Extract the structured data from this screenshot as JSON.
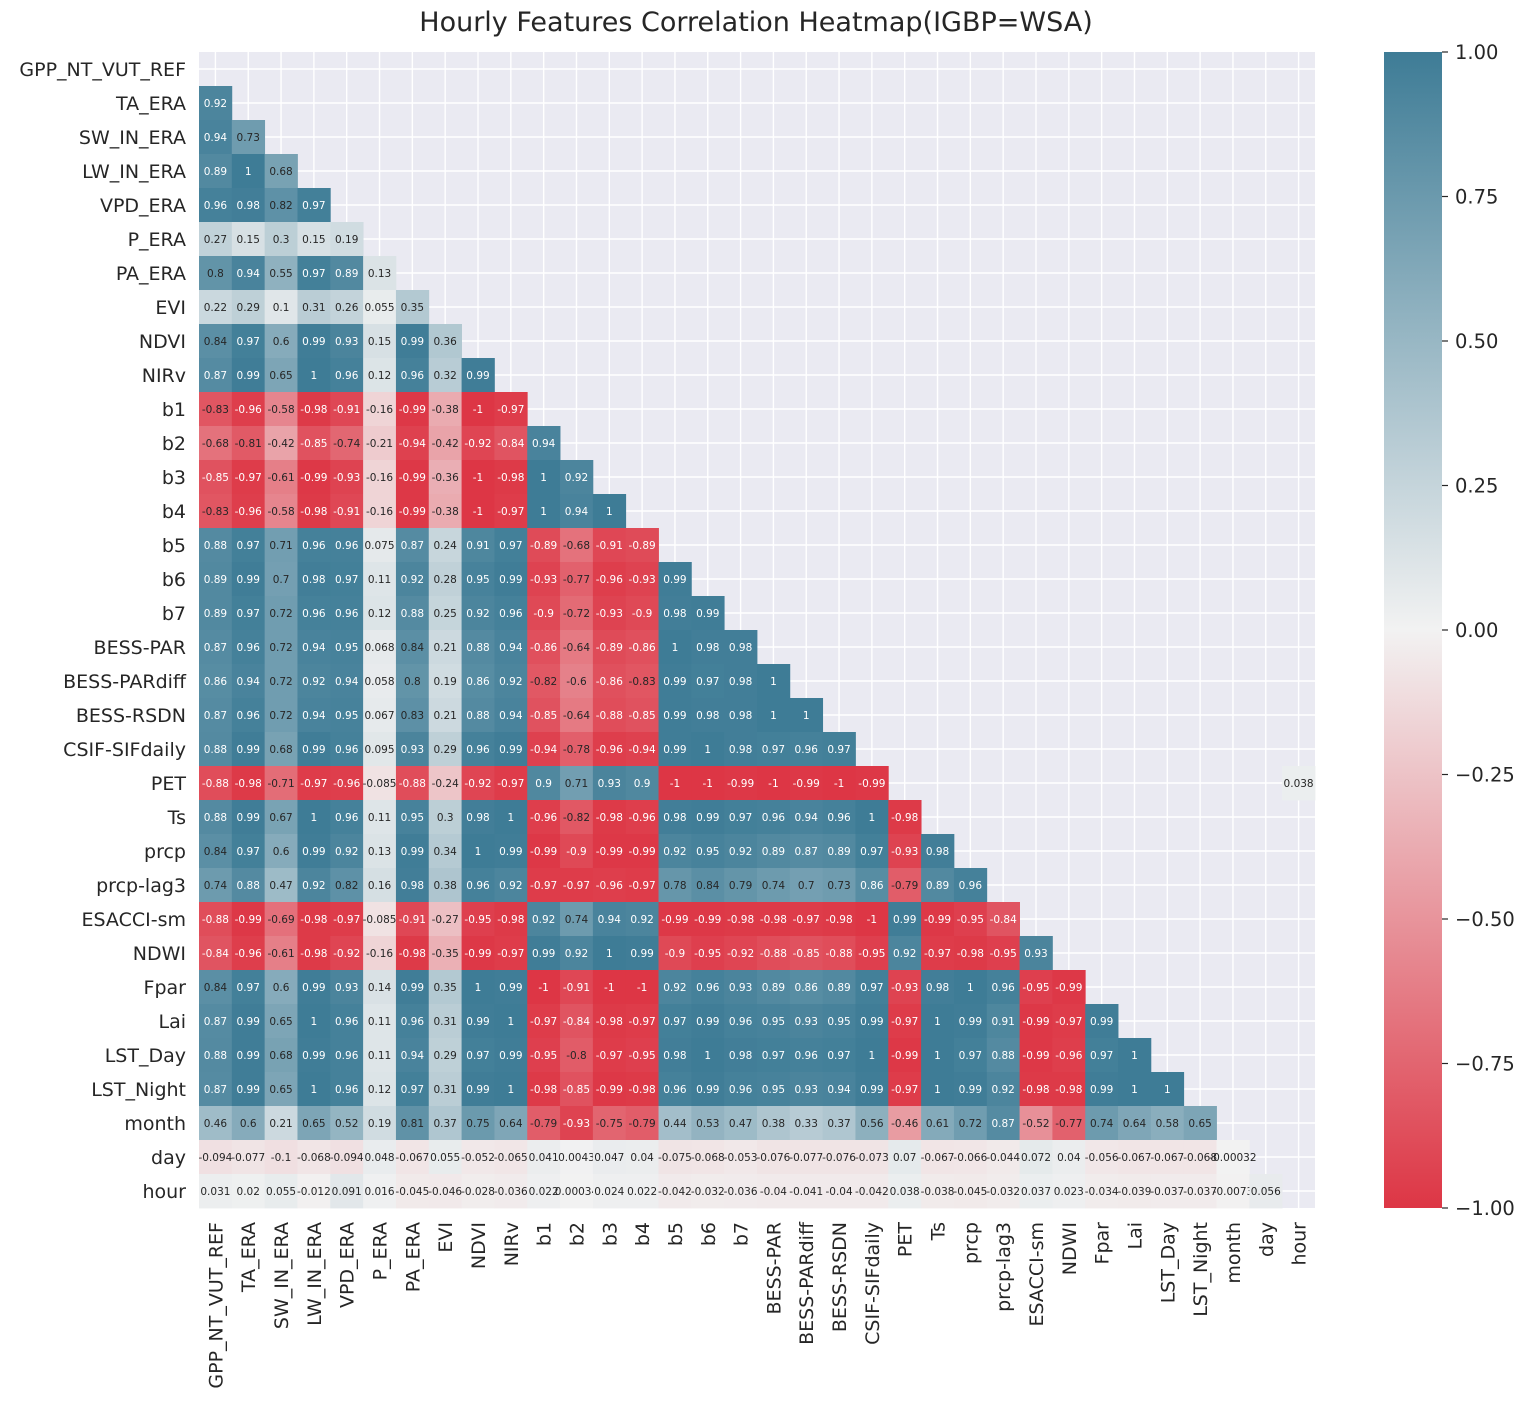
{
  "chart_data": {
    "type": "heatmap",
    "title": "Hourly Features Correlation Heatmap(IGBP=WSA)",
    "labels": [
      "GPP_NT_VUT_REF",
      "TA_ERA",
      "SW_IN_ERA",
      "LW_IN_ERA",
      "VPD_ERA",
      "P_ERA",
      "PA_ERA",
      "EVI",
      "NDVI",
      "NIRv",
      "b1",
      "b2",
      "b3",
      "b4",
      "b5",
      "b6",
      "b7",
      "BESS-PAR",
      "BESS-PARdiff",
      "BESS-RSDN",
      "CSIF-SIFdaily",
      "PET",
      "Ts",
      "prcp",
      "prcp-lag3",
      "ESACCI-sm",
      "NDWI",
      "Fpar",
      "Lai",
      "LST_Day",
      "LST_Night",
      "month",
      "day",
      "hour"
    ],
    "mask": "upper-triangle",
    "value_range": [
      -1,
      1
    ],
    "colormap": {
      "low": "#dd3645",
      "mid": "#f2f2f2",
      "high": "#3e7c96"
    },
    "colorbar_ticks": [
      "1.00",
      "0.75",
      "0.50",
      "0.25",
      "0.00",
      "−0.25",
      "−0.50",
      "−0.75",
      "−1.00"
    ],
    "lower_triangle_values": [
      [],
      [
        0.92
      ],
      [
        0.94,
        0.73
      ],
      [
        0.89,
        1,
        0.68
      ],
      [
        0.96,
        0.98,
        0.82,
        0.97
      ],
      [
        0.27,
        0.15,
        0.3,
        0.15,
        0.19
      ],
      [
        0.8,
        0.94,
        0.55,
        0.97,
        0.89,
        0.13
      ],
      [
        0.22,
        0.29,
        0.1,
        0.31,
        0.26,
        0.055,
        0.35
      ],
      [
        0.84,
        0.97,
        0.6,
        0.99,
        0.93,
        0.15,
        0.99,
        0.36
      ],
      [
        0.87,
        0.99,
        0.65,
        1,
        0.96,
        0.12,
        0.96,
        0.32,
        0.99
      ],
      [
        -0.83,
        -0.96,
        -0.58,
        -0.98,
        -0.91,
        -0.16,
        -0.99,
        -0.38,
        -1,
        -0.97
      ],
      [
        -0.68,
        -0.81,
        -0.42,
        -0.85,
        -0.74,
        -0.21,
        -0.94,
        -0.42,
        -0.92,
        -0.84,
        0.94
      ],
      [
        -0.85,
        -0.97,
        -0.61,
        -0.99,
        -0.93,
        -0.16,
        -0.99,
        -0.36,
        -1,
        -0.98,
        1,
        0.92
      ],
      [
        -0.83,
        -0.96,
        -0.58,
        -0.98,
        -0.91,
        -0.16,
        -0.99,
        -0.38,
        -1,
        -0.97,
        1,
        0.94,
        1
      ],
      [
        0.88,
        0.97,
        0.71,
        0.96,
        0.96,
        0.075,
        0.87,
        0.24,
        0.91,
        0.97,
        -0.89,
        -0.68,
        -0.91,
        -0.89
      ],
      [
        0.89,
        0.99,
        0.7,
        0.98,
        0.97,
        0.11,
        0.92,
        0.28,
        0.95,
        0.99,
        -0.93,
        -0.77,
        -0.96,
        -0.93,
        0.99
      ],
      [
        0.89,
        0.97,
        0.72,
        0.96,
        0.96,
        0.12,
        0.88,
        0.25,
        0.92,
        0.96,
        -0.9,
        -0.72,
        -0.93,
        -0.9,
        0.98,
        0.99
      ],
      [
        0.87,
        0.96,
        0.72,
        0.94,
        0.95,
        0.068,
        0.84,
        0.21,
        0.88,
        0.94,
        -0.86,
        -0.64,
        -0.89,
        -0.86,
        1,
        0.98,
        0.98
      ],
      [
        0.86,
        0.94,
        0.72,
        0.92,
        0.94,
        0.058,
        0.8,
        0.19,
        0.86,
        0.92,
        -0.82,
        -0.6,
        -0.86,
        -0.83,
        0.99,
        0.97,
        0.98,
        1
      ],
      [
        0.87,
        0.96,
        0.72,
        0.94,
        0.95,
        0.067,
        0.83,
        0.21,
        0.88,
        0.94,
        -0.85,
        -0.64,
        -0.88,
        -0.85,
        0.99,
        0.98,
        0.98,
        1,
        1
      ],
      [
        0.88,
        0.99,
        0.68,
        0.99,
        0.96,
        0.095,
        0.93,
        0.29,
        0.96,
        0.99,
        -0.94,
        -0.78,
        -0.96,
        -0.94,
        0.99,
        1,
        0.98,
        0.97,
        0.96,
        0.97
      ],
      [
        -0.88,
        -0.98,
        -0.71,
        -0.97,
        -0.96,
        -0.085,
        -0.88,
        -0.24,
        -0.92,
        -0.97,
        0.9,
        0.71,
        0.93,
        0.9,
        -1,
        -1,
        -0.99,
        -1,
        -0.99,
        -1,
        -0.99
      ],
      [
        0.88,
        0.99,
        0.67,
        1,
        0.96,
        0.11,
        0.95,
        0.3,
        0.98,
        1,
        -0.96,
        -0.82,
        -0.98,
        -0.96,
        0.98,
        0.99,
        0.97,
        0.96,
        0.94,
        0.96,
        1,
        -0.98
      ],
      [
        0.84,
        0.97,
        0.6,
        0.99,
        0.92,
        0.13,
        0.99,
        0.34,
        1,
        0.99,
        -0.99,
        -0.9,
        -0.99,
        -0.99,
        0.92,
        0.95,
        0.92,
        0.89,
        0.87,
        0.89,
        0.97,
        -0.93,
        0.98
      ],
      [
        0.74,
        0.88,
        0.47,
        0.92,
        0.82,
        0.16,
        0.98,
        0.38,
        0.96,
        0.92,
        -0.97,
        -0.97,
        -0.96,
        -0.97,
        0.78,
        0.84,
        0.79,
        0.74,
        0.7,
        0.73,
        0.86,
        -0.79,
        0.89,
        0.96
      ],
      [
        -0.88,
        -0.99,
        -0.69,
        -0.98,
        -0.97,
        -0.085,
        -0.91,
        -0.27,
        -0.95,
        -0.98,
        0.92,
        0.74,
        0.94,
        0.92,
        -0.99,
        -0.99,
        -0.98,
        -0.98,
        -0.97,
        -0.98,
        -1,
        0.99,
        -0.99,
        -0.95,
        -0.84
      ],
      [
        -0.84,
        -0.96,
        -0.61,
        -0.98,
        -0.92,
        -0.16,
        -0.98,
        -0.35,
        -0.99,
        -0.97,
        0.99,
        0.92,
        1,
        0.99,
        -0.9,
        -0.95,
        -0.92,
        -0.88,
        -0.85,
        -0.88,
        -0.95,
        0.92,
        -0.97,
        -0.98,
        -0.95,
        0.93
      ],
      [
        0.84,
        0.97,
        0.6,
        0.99,
        0.93,
        0.14,
        0.99,
        0.35,
        1,
        0.99,
        -1,
        -0.91,
        -1,
        -1,
        0.92,
        0.96,
        0.93,
        0.89,
        0.86,
        0.89,
        0.97,
        -0.93,
        0.98,
        1,
        0.96,
        -0.95,
        -0.99
      ],
      [
        0.87,
        0.99,
        0.65,
        1,
        0.96,
        0.11,
        0.96,
        0.31,
        0.99,
        1,
        -0.97,
        -0.84,
        -0.98,
        -0.97,
        0.97,
        0.99,
        0.96,
        0.95,
        0.93,
        0.95,
        0.99,
        -0.97,
        1,
        0.99,
        0.91,
        -0.99,
        -0.97,
        0.99
      ],
      [
        0.88,
        0.99,
        0.68,
        0.99,
        0.96,
        0.11,
        0.94,
        0.29,
        0.97,
        0.99,
        -0.95,
        -0.8,
        -0.97,
        -0.95,
        0.98,
        1,
        0.98,
        0.97,
        0.96,
        0.97,
        1,
        -0.99,
        1,
        0.97,
        0.88,
        -0.99,
        -0.96,
        0.97,
        1
      ],
      [
        0.87,
        0.99,
        0.65,
        1,
        0.96,
        0.12,
        0.97,
        0.31,
        0.99,
        1,
        -0.98,
        -0.85,
        -0.99,
        -0.98,
        0.96,
        0.99,
        0.96,
        0.95,
        0.93,
        0.94,
        0.99,
        -0.97,
        1,
        0.99,
        0.92,
        -0.98,
        -0.98,
        0.99,
        1,
        1
      ],
      [
        0.46,
        0.6,
        0.21,
        0.65,
        0.52,
        0.19,
        0.81,
        0.37,
        0.75,
        0.64,
        -0.79,
        -0.93,
        -0.75,
        -0.79,
        0.44,
        0.53,
        0.47,
        0.38,
        0.33,
        0.37,
        0.56,
        -0.46,
        0.61,
        0.72,
        0.87,
        -0.52,
        -0.77,
        0.74,
        0.64,
        0.58,
        0.65
      ],
      [
        -0.094,
        -0.077,
        -0.1,
        -0.068,
        -0.094,
        0.048,
        -0.067,
        0.055,
        -0.052,
        -0.065,
        0.041,
        0.0043,
        0.047,
        0.04,
        -0.075,
        -0.068,
        -0.053,
        -0.076,
        -0.077,
        -0.076,
        -0.073,
        0.07,
        -0.067,
        -0.066,
        -0.044,
        0.072,
        0.04,
        -0.056,
        -0.067,
        -0.067,
        -0.068,
        -0.00032
      ],
      [
        0.031,
        0.02,
        0.055,
        -0.012,
        0.091,
        0.016,
        -0.045,
        -0.046,
        -0.028,
        -0.036,
        0.022,
        0.00034,
        0.024,
        0.022,
        -0.042,
        -0.032,
        -0.036,
        -0.04,
        -0.041,
        -0.04,
        -0.042,
        0.038,
        -0.038,
        -0.045,
        -0.032,
        0.037,
        0.023,
        -0.034,
        -0.039,
        -0.037,
        -0.037,
        -0.0073,
        0.056
      ]
    ],
    "stray_annotation": {
      "row": "PET",
      "col": "hour",
      "value": 0.038
    }
  }
}
